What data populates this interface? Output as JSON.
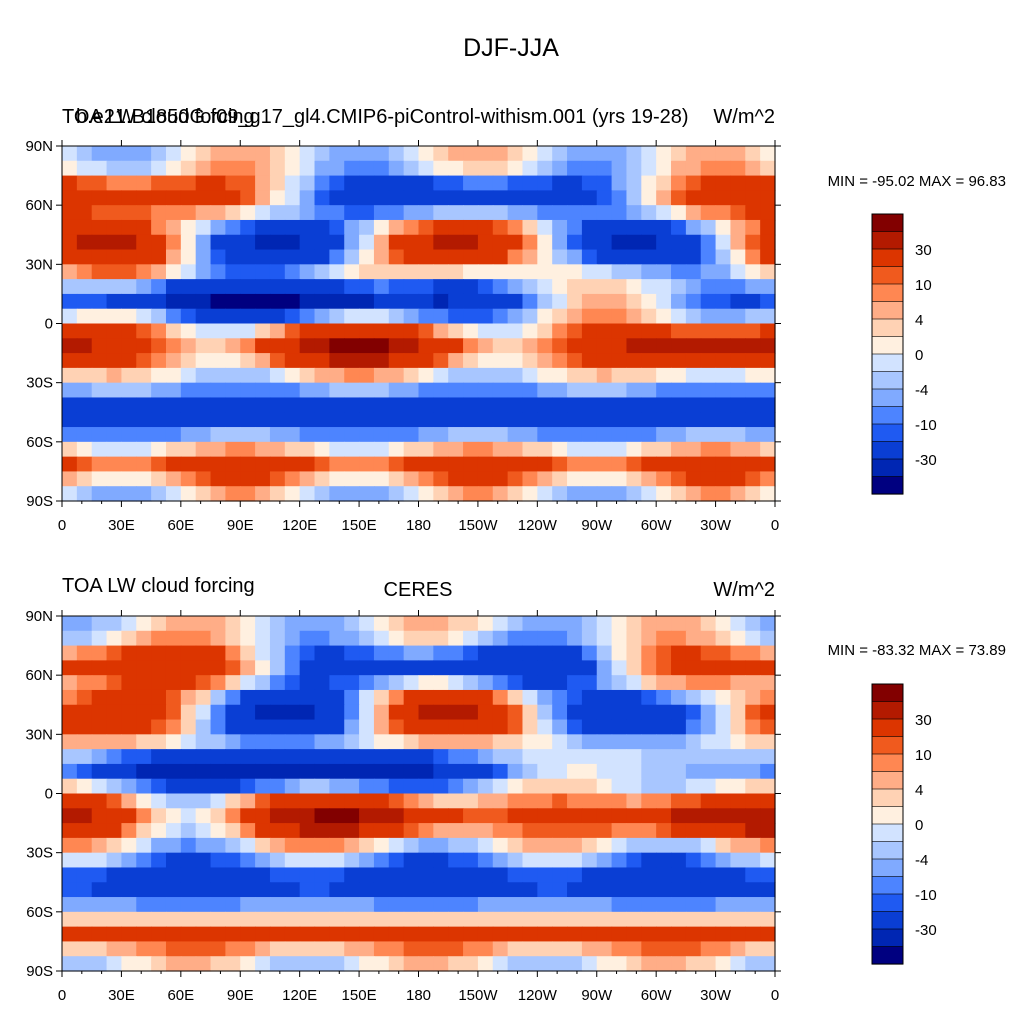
{
  "figure": {
    "title": "DJF-JJA"
  },
  "palette": [
    "#000080",
    "#0026b3",
    "#0a3ed4",
    "#1f5af2",
    "#4d84ff",
    "#80aaff",
    "#a8c6ff",
    "#d2e3ff",
    "#fff0e0",
    "#ffd2b4",
    "#ffad87",
    "#ff8752",
    "#f05a1e",
    "#dc3500",
    "#b31a00",
    "#820000"
  ],
  "colorbar_labels": [
    "30",
    "10",
    "4",
    "0",
    "-4",
    "-10",
    "-30"
  ],
  "x_ticks": [
    "0",
    "30E",
    "60E",
    "90E",
    "120E",
    "150E",
    "180",
    "150W",
    "120W",
    "90W",
    "60W",
    "30W",
    "0"
  ],
  "y_ticks": [
    "90N",
    "60N",
    "30N",
    "0",
    "30S",
    "60S",
    "90S"
  ],
  "panels": [
    {
      "left_title": "TOA LW cloud forcing",
      "overlay_title": "b.e21.B1850G.f09_g17_gl4.CMIP6-piControl-withism.001 (yrs 19-28)",
      "center_title": "",
      "units_label": "W/m^2",
      "stats": "MIN = -95.02 MAX =  96.83"
    },
    {
      "left_title": "TOA LW cloud forcing",
      "overlay_title": "",
      "center_title": "CERES",
      "units_label": "W/m^2",
      "stats": "MIN = -83.32 MAX =  73.89"
    }
  ],
  "chart_data": [
    {
      "type": "heatmap",
      "title": "TOA LW cloud forcing",
      "subtitle": "b.e21.B1850G.f09_g17_gl4.CMIP6-piControl-withism.001 (yrs 19-28)",
      "units": "W/m^2",
      "x_range": [
        0,
        360
      ],
      "y_range": [
        -90,
        90
      ],
      "min": -95.02,
      "max": 96.83,
      "levels": [
        -40,
        -30,
        -20,
        -10,
        -8,
        -6,
        -4,
        -2,
        0,
        2,
        4,
        6,
        8,
        10,
        20,
        30,
        40
      ]
    },
    {
      "type": "heatmap",
      "title": "TOA LW cloud forcing",
      "subtitle": "CERES",
      "units": "W/m^2",
      "x_range": [
        0,
        360
      ],
      "y_range": [
        -90,
        90
      ],
      "min": -83.32,
      "max": 73.89,
      "levels": [
        -40,
        -30,
        -20,
        -10,
        -8,
        -6,
        -4,
        -2,
        0,
        2,
        4,
        6,
        8,
        10,
        20,
        30,
        40
      ]
    }
  ]
}
